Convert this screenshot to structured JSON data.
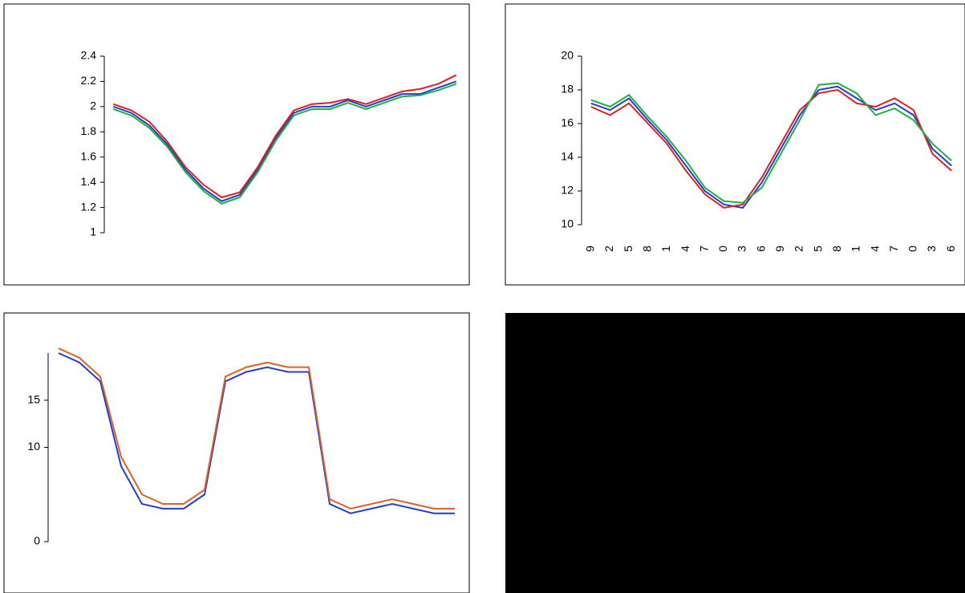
{
  "chart_data": [
    {
      "type": "line",
      "categories": [
        null,
        null,
        null,
        null,
        null,
        null,
        null,
        null,
        null,
        null,
        null,
        null,
        null,
        null,
        null,
        null,
        null,
        null,
        null,
        null
      ],
      "ylim": [
        1.0,
        2.4
      ],
      "yticks": [
        1.0,
        1.2,
        1.4,
        1.6,
        1.8,
        2.0,
        2.2,
        2.4
      ],
      "series": [
        {
          "color": "#1f3fd0",
          "values": [
            2.0,
            1.95,
            1.85,
            1.7,
            1.5,
            1.35,
            1.25,
            1.3,
            1.5,
            1.75,
            1.95,
            2.0,
            2.0,
            2.05,
            2.0,
            2.05,
            2.1,
            2.1,
            2.15,
            2.2
          ]
        },
        {
          "color": "#e02020",
          "values": [
            2.02,
            1.97,
            1.88,
            1.72,
            1.52,
            1.38,
            1.28,
            1.32,
            1.52,
            1.77,
            1.97,
            2.02,
            2.03,
            2.06,
            2.02,
            2.07,
            2.12,
            2.14,
            2.18,
            2.25
          ]
        },
        {
          "color": "#20b040",
          "values": [
            1.98,
            1.93,
            1.83,
            1.68,
            1.48,
            1.33,
            1.23,
            1.28,
            1.48,
            1.73,
            1.93,
            1.98,
            1.98,
            2.03,
            1.98,
            2.03,
            2.08,
            2.09,
            2.13,
            2.18
          ]
        }
      ]
    },
    {
      "type": "line",
      "categories": [
        "9",
        "2",
        "5",
        "8",
        "1",
        "4",
        "7",
        "0",
        "3",
        "6",
        "9",
        "2",
        "5",
        "8",
        "1",
        "4",
        "7",
        "0",
        "3",
        "6"
      ],
      "ylim": [
        10,
        20
      ],
      "yticks": [
        10,
        12,
        14,
        16,
        18,
        20
      ],
      "series": [
        {
          "color": "#1f3fd0",
          "values": [
            17.2,
            16.8,
            17.5,
            16.2,
            15.0,
            13.5,
            12.0,
            11.2,
            11.0,
            12.5,
            14.5,
            16.5,
            18.0,
            18.2,
            17.5,
            16.8,
            17.2,
            16.5,
            14.5,
            13.5
          ]
        },
        {
          "color": "#e02020",
          "values": [
            17.0,
            16.5,
            17.2,
            16.0,
            14.8,
            13.2,
            11.8,
            11.0,
            11.2,
            12.8,
            14.8,
            16.8,
            17.8,
            18.0,
            17.2,
            17.0,
            17.5,
            16.8,
            14.2,
            13.2
          ]
        },
        {
          "color": "#20b040",
          "values": [
            17.4,
            17.0,
            17.7,
            16.4,
            15.2,
            13.8,
            12.2,
            11.4,
            11.3,
            12.2,
            14.2,
            16.2,
            18.3,
            18.4,
            17.8,
            16.5,
            16.9,
            16.2,
            14.8,
            13.8
          ]
        }
      ]
    },
    {
      "type": "line",
      "categories": [
        null,
        null,
        null,
        null,
        null,
        null,
        null,
        null,
        null,
        null,
        null,
        null,
        null,
        null,
        null,
        null,
        null,
        null,
        null,
        null
      ],
      "ylim": [
        0,
        20
      ],
      "yticks": [
        0,
        10,
        15
      ],
      "series": [
        {
          "color": "#1f3fd0",
          "values": [
            20,
            19,
            17,
            8,
            4,
            3.5,
            3.5,
            5,
            17,
            18,
            18.5,
            18,
            18,
            4,
            3,
            3.5,
            4,
            3.5,
            3,
            3
          ]
        },
        {
          "color": "#e06020",
          "values": [
            20.5,
            19.5,
            17.5,
            9,
            5,
            4,
            4,
            5.5,
            17.5,
            18.5,
            19,
            18.5,
            18.5,
            4.5,
            3.5,
            4,
            4.5,
            4,
            3.5,
            3.5
          ]
        }
      ]
    }
  ]
}
